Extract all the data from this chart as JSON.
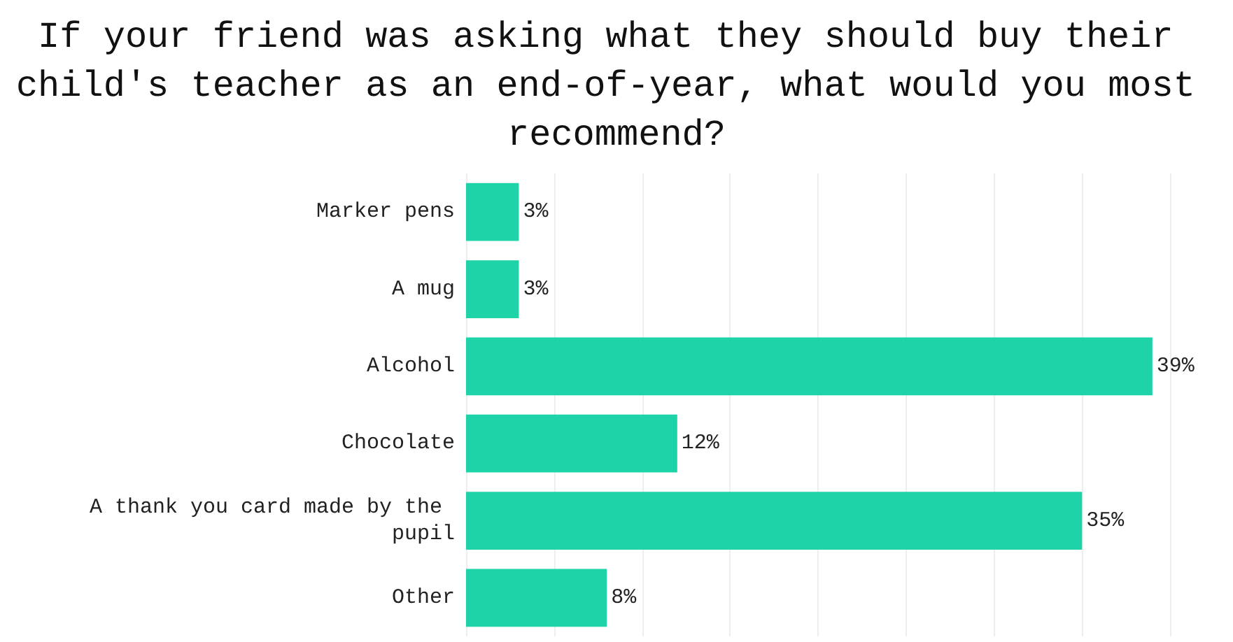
{
  "chart_data": {
    "type": "bar",
    "orientation": "horizontal",
    "title": "If your friend was asking what they should buy their child's teacher as an end-of-year, what would you most recommend?",
    "categories": [
      "Marker pens",
      "A mug",
      "Alcohol",
      "Chocolate",
      "A thank you card made by the pupil",
      "Other"
    ],
    "values": [
      3,
      3,
      39,
      12,
      35,
      8
    ],
    "color": "#1fd3a8",
    "value_labels": [
      "3%",
      "3%",
      "39%",
      "12%",
      "35%",
      "8%"
    ],
    "xlim": [
      0,
      40
    ],
    "xticks": [
      {
        "value": 0,
        "label": null
      },
      {
        "value": 5,
        "label": null
      },
      {
        "value": 10,
        "label": null
      },
      {
        "value": 15,
        "label": null
      },
      {
        "value": 20,
        "label": null
      },
      {
        "value": 25,
        "label": null
      },
      {
        "value": 30,
        "label": null
      },
      {
        "value": 35,
        "label": null
      },
      {
        "value": 40,
        "label": null
      }
    ],
    "grid": "x",
    "tick_labels": "y"
  }
}
